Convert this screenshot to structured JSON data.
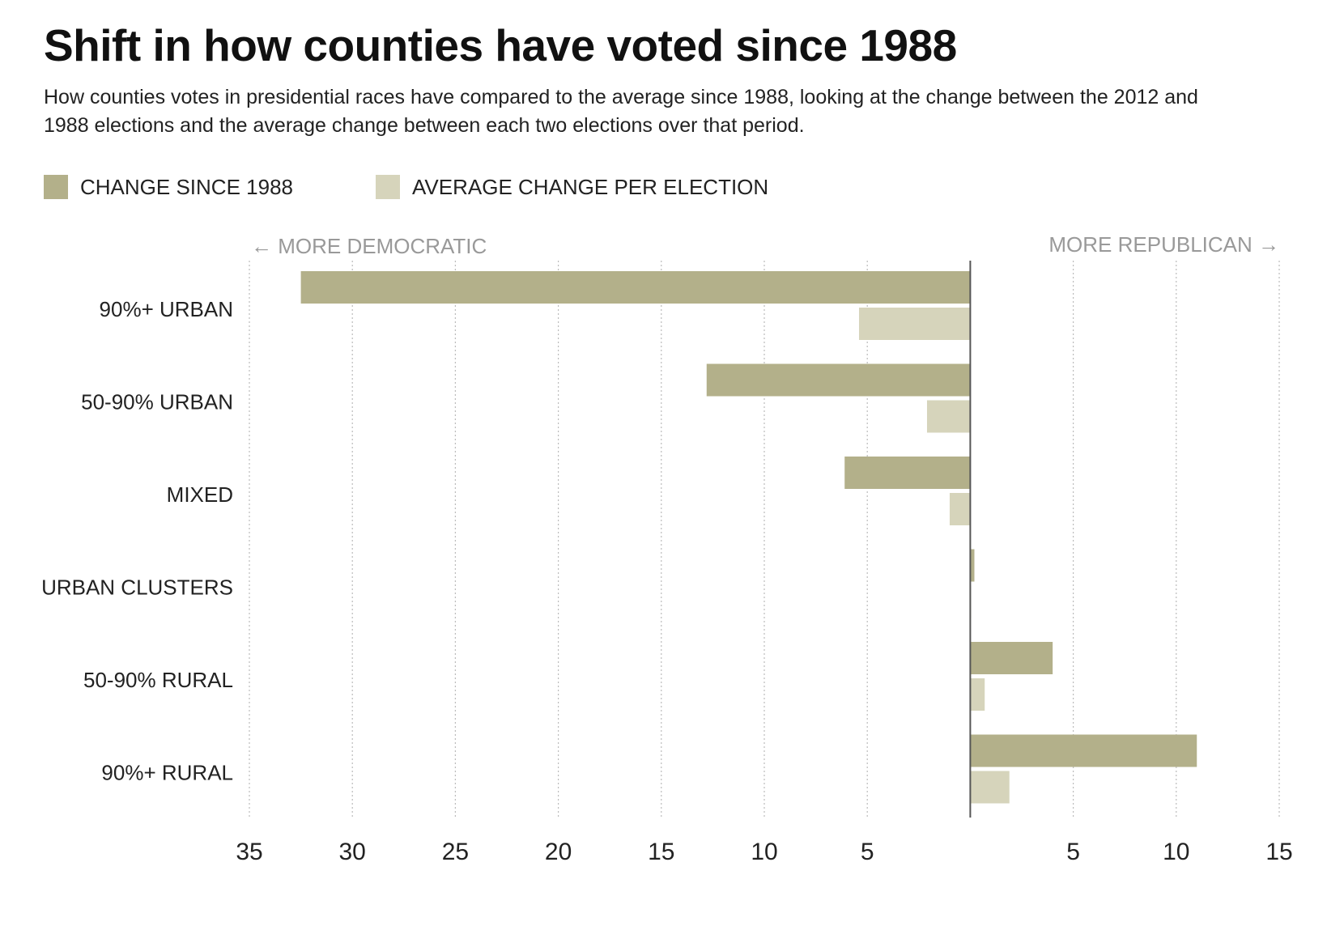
{
  "title": "Shift in how counties have voted since 1988",
  "subtitle": "How counties votes in presidential races have compared to the average since 1988, looking at the change between the 2012 and 1988 elections and the average change between each two elections over that period.",
  "colors": {
    "change": "#b3b08a",
    "average": "#d6d4bb",
    "axis": "#555555",
    "grid": "#bbbbbb"
  },
  "chart_data": {
    "type": "bar",
    "orientation": "horizontal",
    "categories": [
      "90%+ URBAN",
      "50-90% URBAN",
      "MIXED",
      "URBAN CLUSTERS",
      "50-90% RURAL",
      "90%+ RURAL"
    ],
    "series": [
      {
        "name": "CHANGE SINCE 1988",
        "values": [
          -32.5,
          -12.8,
          -6.1,
          0.2,
          4.0,
          11.0
        ]
      },
      {
        "name": "AVERAGE CHANGE PER ELECTION",
        "values": [
          -5.4,
          -2.1,
          -1.0,
          0.0,
          0.7,
          1.9
        ]
      }
    ],
    "xlim": [
      -35,
      15
    ],
    "xticks": [
      {
        "value": -35,
        "label": "35"
      },
      {
        "value": -30,
        "label": "30"
      },
      {
        "value": -25,
        "label": "25"
      },
      {
        "value": -20,
        "label": "20"
      },
      {
        "value": -15,
        "label": "15"
      },
      {
        "value": -10,
        "label": "10"
      },
      {
        "value": -5,
        "label": "5"
      },
      {
        "value": 5,
        "label": "5"
      },
      {
        "value": 10,
        "label": "10"
      },
      {
        "value": 15,
        "label": "15"
      }
    ],
    "left_direction_label": "← MORE DEMOCRATIC",
    "right_direction_label": "MORE REPUBLICAN →",
    "grid": true,
    "legend_position": "top-left"
  }
}
